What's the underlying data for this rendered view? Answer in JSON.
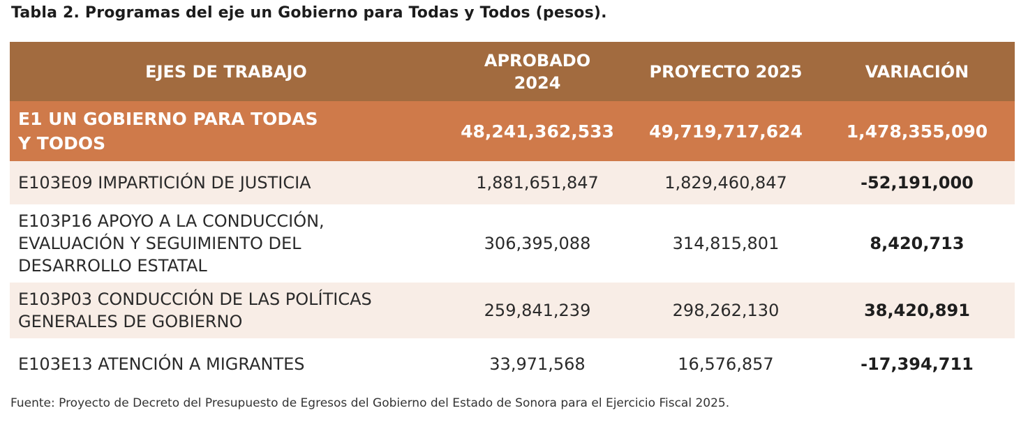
{
  "title": "Tabla 2. Programas del eje un Gobierno para Todas y Todos (pesos).",
  "table": {
    "headers": {
      "name": "EJES DE TRABAJO",
      "approved_line1": "APROBADO",
      "approved_line2": "2024",
      "project": "PROYECTO 2025",
      "variation": "VARIACIÓN"
    },
    "total": {
      "name_line1": "E1 UN GOBIERNO PARA TODAS",
      "name_line2": "Y TODOS",
      "approved": "48,241,362,533",
      "project": "49,719,717,624",
      "variation": "1,478,355,090"
    },
    "rows": [
      {
        "name_lines": [
          "E103E09 IMPARTICIÓN DE JUSTICIA"
        ],
        "approved": "1,881,651,847",
        "project": "1,829,460,847",
        "variation": "-52,191,000"
      },
      {
        "name_lines": [
          "E103P16 APOYO A LA CONDUCCIÓN,",
          "EVALUACIÓN Y SEGUIMIENTO DEL",
          "DESARROLLO ESTATAL"
        ],
        "approved": "306,395,088",
        "project": "314,815,801",
        "variation": "8,420,713"
      },
      {
        "name_lines": [
          "E103P03 CONDUCCIÓN DE LAS POLÍTICAS",
          "GENERALES DE GOBIERNO"
        ],
        "approved": "259,841,239",
        "project": "298,262,130",
        "variation": "38,420,891"
      },
      {
        "name_lines": [
          "E103E13 ATENCIÓN A MIGRANTES"
        ],
        "approved": "33,971,568",
        "project": "16,576,857",
        "variation": "-17,394,711"
      }
    ]
  },
  "source": "Fuente: Proyecto de Decreto del Presupuesto de Egresos del Gobierno del Estado de Sonora para el Ejercicio Fiscal 2025.",
  "colors": {
    "header_bg": "#a26b3f",
    "total_bg": "#cf7a4a",
    "shaded_row_bg": "#f8ede6"
  }
}
